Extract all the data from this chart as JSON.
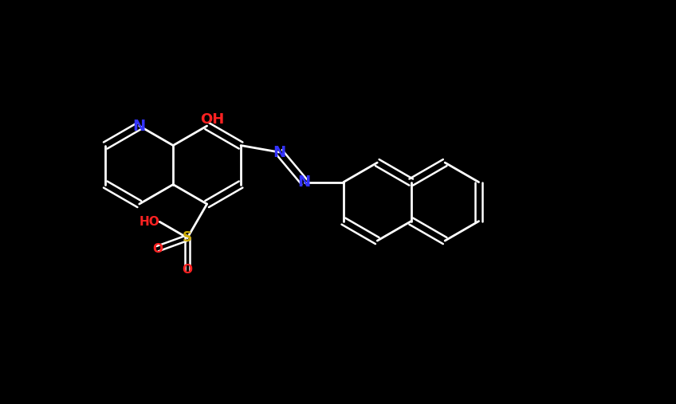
{
  "bg_color": "#000000",
  "bond_color": "#ffffff",
  "N_color": "#3333ff",
  "O_color": "#ff2222",
  "S_color": "#ccaa00",
  "fig_width": 8.48,
  "fig_height": 5.07,
  "dpi": 100,
  "BL": 0.58,
  "xlim": [
    0,
    10
  ],
  "ylim": [
    0,
    6
  ]
}
